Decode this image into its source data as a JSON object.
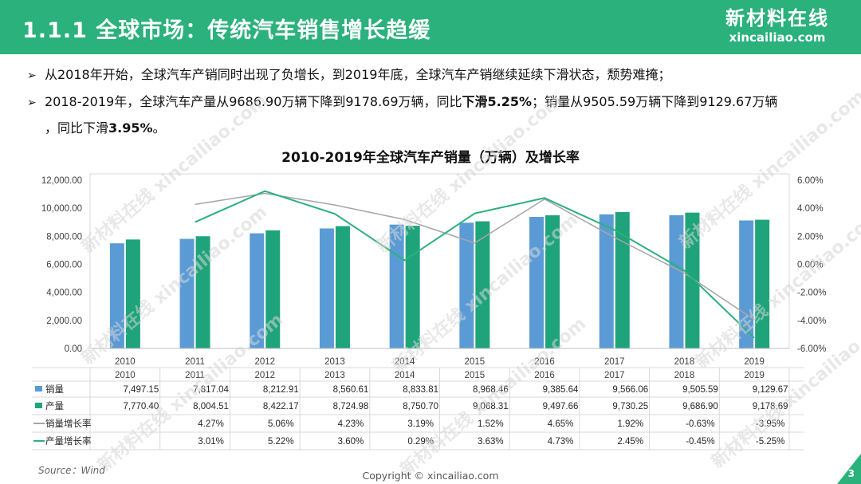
{
  "header": {
    "title": "1.1.1 全球市场：传统汽车销售增长趋缓",
    "logo_cn": "新材料在线",
    "logo_en": "xincailiao.com"
  },
  "bullets": {
    "arrow": "➢",
    "b1": "从2018年开始，全球汽车产销同时出现了负增长，到2019年底，全球汽车产销继续延续下滑状态，颓势难掩；",
    "b2_a": "2018-2019年，全球汽车产量从9686.90万辆下降到9178.69万辆，同比",
    "b2_bold": "下滑5.25%",
    "b2_b": "；销量从9505.59万辆下降到9129.67万辆",
    "b3_a": "，同比下滑",
    "b3_bold": "3.95%",
    "b3_b": "。"
  },
  "chart_data": {
    "type": "bar",
    "title": "2010-2019年全球汽车产销量（万辆）及增长率",
    "categories": [
      "2010",
      "2011",
      "2012",
      "2013",
      "2014",
      "2015",
      "2016",
      "2017",
      "2018",
      "2019"
    ],
    "left_axis": {
      "ylim": [
        0,
        12000
      ],
      "ticks": [
        "0.00",
        "2,000.00",
        "4,000.00",
        "6,000.00",
        "8,000.00",
        "10,000.00",
        "12,000.00"
      ]
    },
    "right_axis": {
      "ylim": [
        -6,
        6
      ],
      "ticks": [
        "-6.00%",
        "-4.00%",
        "-2.00%",
        "0.00%",
        "2.00%",
        "4.00%",
        "6.00%"
      ]
    },
    "series": [
      {
        "name": "销量",
        "kind": "bar",
        "axis": "left",
        "color": "#5b9bd5",
        "values": [
          7497.15,
          7817.04,
          8212.91,
          8560.61,
          8833.81,
          8968.46,
          9385.64,
          9566.06,
          9505.59,
          9129.67
        ],
        "labels": [
          "7,497.15",
          "7,817.04",
          "8,212.91",
          "8,560.61",
          "8,833.81",
          "8,968.46",
          "9,385.64",
          "9,566.06",
          "9,505.59",
          "9,129.67"
        ]
      },
      {
        "name": "产量",
        "kind": "bar",
        "axis": "left",
        "color": "#1fa37a",
        "values": [
          7770.4,
          8004.51,
          8422.17,
          8724.98,
          8750.7,
          9068.31,
          9497.66,
          9730.25,
          9686.9,
          9178.69
        ],
        "labels": [
          "7,770.40",
          "8,004.51",
          "8,422.17",
          "8,724.98",
          "8,750.70",
          "9,068.31",
          "9,497.66",
          "9,730.25",
          "9,686.90",
          "9,178.69"
        ]
      },
      {
        "name": "销量增长率",
        "kind": "line",
        "axis": "right",
        "color": "#a6a6a6",
        "values": [
          null,
          4.27,
          5.06,
          4.23,
          3.19,
          1.52,
          4.65,
          1.92,
          -0.63,
          -3.95
        ],
        "labels": [
          "",
          "4.27%",
          "5.06%",
          "4.23%",
          "3.19%",
          "1.52%",
          "4.65%",
          "1.92%",
          "-0.63%",
          "-3.95%"
        ]
      },
      {
        "name": "产量增长率",
        "kind": "line",
        "axis": "right",
        "color": "#2bb17c",
        "values": [
          null,
          3.01,
          5.22,
          3.6,
          0.29,
          3.63,
          4.73,
          2.45,
          -0.45,
          -5.25
        ],
        "labels": [
          "",
          "3.01%",
          "5.22%",
          "3.60%",
          "0.29%",
          "3.63%",
          "4.73%",
          "2.45%",
          "-0.45%",
          "-5.25%"
        ]
      }
    ]
  },
  "footer": {
    "source": "Source：Wind",
    "copyright": "Copyright © xincailiao.com",
    "page": "3"
  },
  "watermark": "新材料在线 xincailiao.com"
}
